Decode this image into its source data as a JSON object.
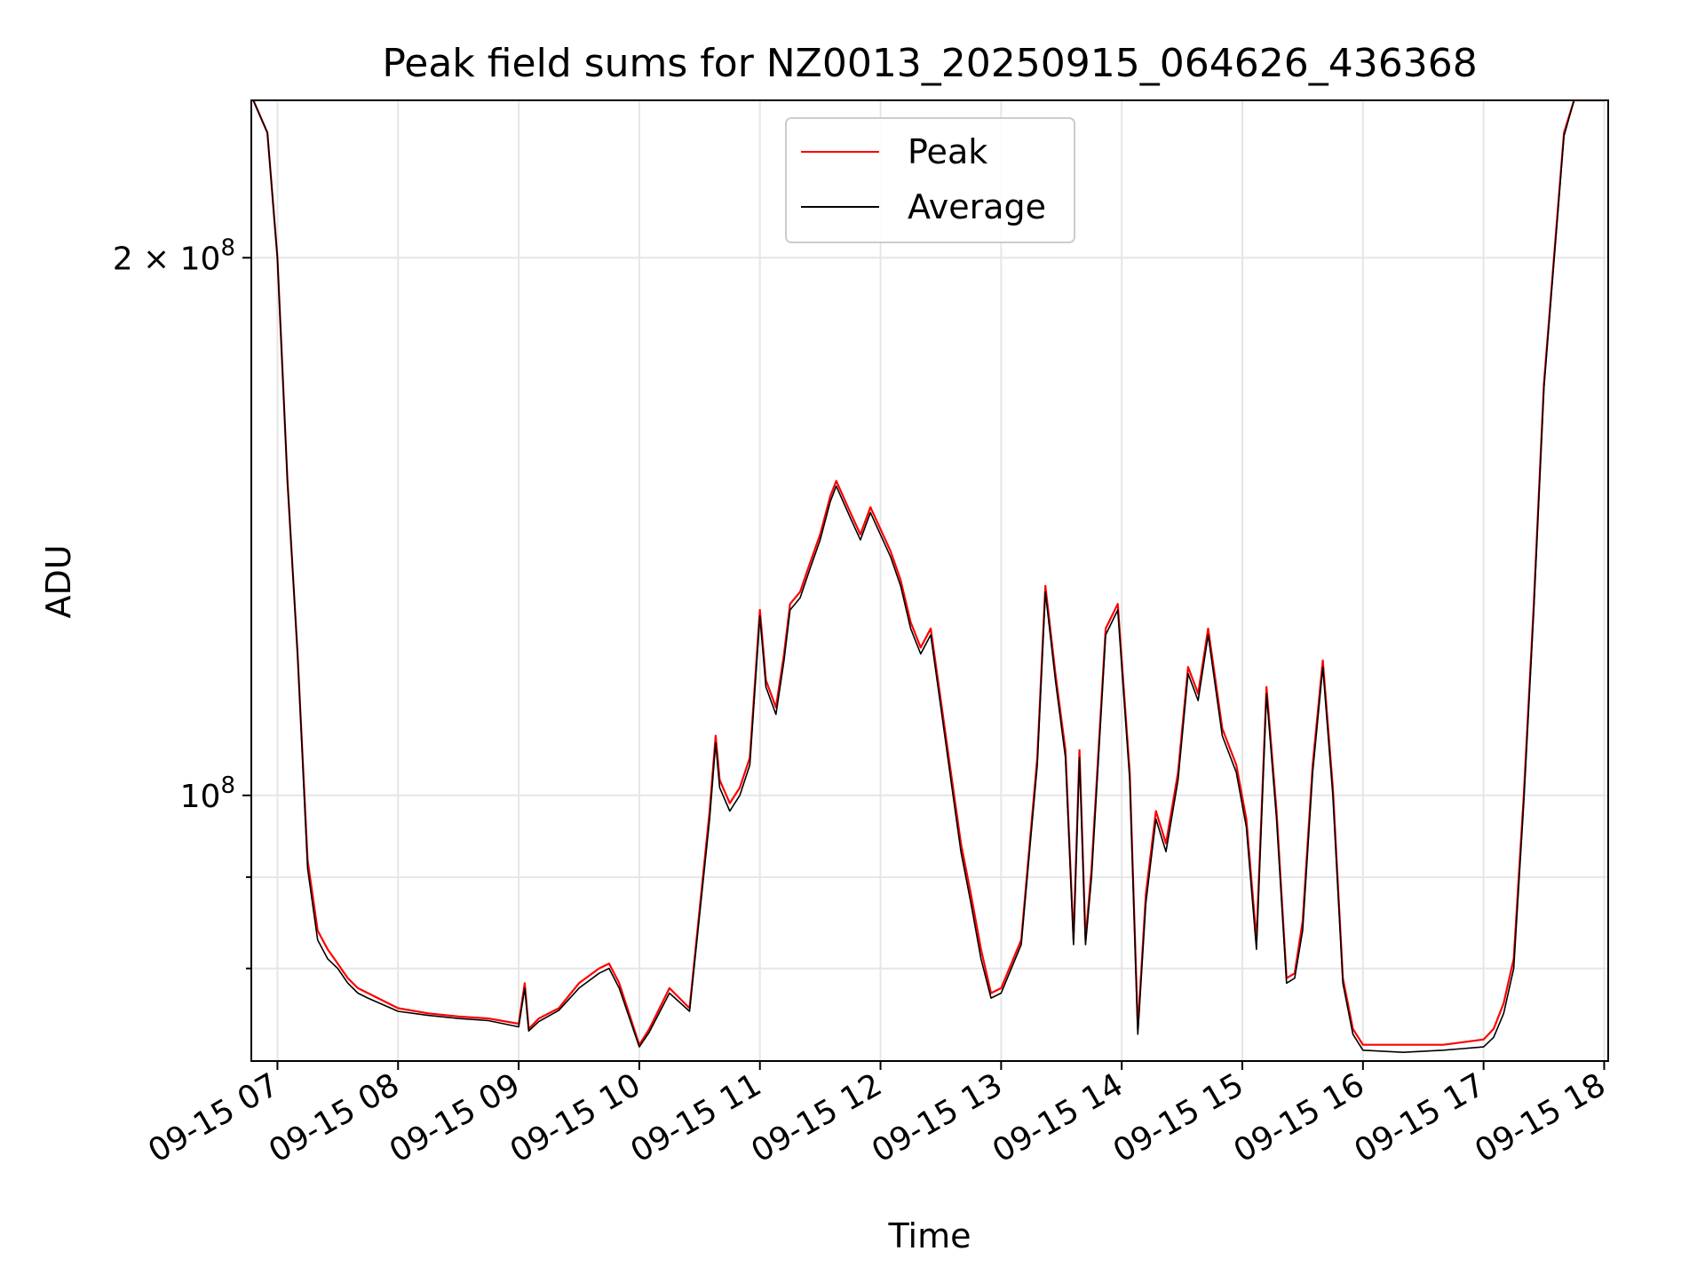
{
  "chart_data": {
    "type": "line",
    "title": "Peak field sums for NZ0013_20250915_064626_436368",
    "xlabel": "Time",
    "ylabel": "ADU",
    "yscale": "log",
    "grid": true,
    "legend_position": "upper center",
    "xlim": [
      "2025-09-15 06:47",
      "2025-09-15 18:02"
    ],
    "ylim": [
      71000000,
      245000000
    ],
    "x_tick_labels": [
      "09-15 07",
      "09-15 08",
      "09-15 09",
      "09-15 10",
      "09-15 11",
      "09-15 12",
      "09-15 13",
      "09-15 14",
      "09-15 15",
      "09-15 16",
      "09-15 17",
      "09-15 18"
    ],
    "x_tick_values": [
      "2025-09-15 07:00",
      "2025-09-15 08:00",
      "2025-09-15 09:00",
      "2025-09-15 10:00",
      "2025-09-15 11:00",
      "2025-09-15 12:00",
      "2025-09-15 13:00",
      "2025-09-15 14:00",
      "2025-09-15 15:00",
      "2025-09-15 16:00",
      "2025-09-15 17:00",
      "2025-09-15 18:00"
    ],
    "y_major_ticks": [
      {
        "value": 100000000,
        "mantissa": "",
        "base": "10",
        "exp": "8"
      },
      {
        "value": 200000000,
        "mantissa": "2",
        "base": "10",
        "exp": "8"
      }
    ],
    "y_minor_ticks": [
      80000000,
      90000000
    ],
    "series": [
      {
        "name": "Peak",
        "color": "#ff0000",
        "x": [
          "2025-09-15 06:48",
          "2025-09-15 06:55",
          "2025-09-15 07:00",
          "2025-09-15 07:05",
          "2025-09-15 07:10",
          "2025-09-15 07:15",
          "2025-09-15 07:20",
          "2025-09-15 07:25",
          "2025-09-15 07:30",
          "2025-09-15 07:35",
          "2025-09-15 07:40",
          "2025-09-15 07:45",
          "2025-09-15 08:00",
          "2025-09-15 08:15",
          "2025-09-15 08:30",
          "2025-09-15 08:45",
          "2025-09-15 09:00",
          "2025-09-15 09:03",
          "2025-09-15 09:05",
          "2025-09-15 09:10",
          "2025-09-15 09:20",
          "2025-09-15 09:30",
          "2025-09-15 09:40",
          "2025-09-15 09:45",
          "2025-09-15 09:50",
          "2025-09-15 10:00",
          "2025-09-15 10:05",
          "2025-09-15 10:15",
          "2025-09-15 10:25",
          "2025-09-15 10:35",
          "2025-09-15 10:38",
          "2025-09-15 10:40",
          "2025-09-15 10:45",
          "2025-09-15 10:50",
          "2025-09-15 10:55",
          "2025-09-15 11:00",
          "2025-09-15 11:03",
          "2025-09-15 11:08",
          "2025-09-15 11:12",
          "2025-09-15 11:15",
          "2025-09-15 11:20",
          "2025-09-15 11:25",
          "2025-09-15 11:30",
          "2025-09-15 11:35",
          "2025-09-15 11:38",
          "2025-09-15 11:45",
          "2025-09-15 11:50",
          "2025-09-15 11:55",
          "2025-09-15 12:05",
          "2025-09-15 12:10",
          "2025-09-15 12:15",
          "2025-09-15 12:20",
          "2025-09-15 12:25",
          "2025-09-15 12:30",
          "2025-09-15 12:35",
          "2025-09-15 12:40",
          "2025-09-15 12:45",
          "2025-09-15 12:50",
          "2025-09-15 12:55",
          "2025-09-15 13:00",
          "2025-09-15 13:10",
          "2025-09-15 13:18",
          "2025-09-15 13:22",
          "2025-09-15 13:27",
          "2025-09-15 13:32",
          "2025-09-15 13:36",
          "2025-09-15 13:39",
          "2025-09-15 13:42",
          "2025-09-15 13:45",
          "2025-09-15 13:52",
          "2025-09-15 13:58",
          "2025-09-15 14:04",
          "2025-09-15 14:08",
          "2025-09-15 14:12",
          "2025-09-15 14:17",
          "2025-09-15 14:22",
          "2025-09-15 14:28",
          "2025-09-15 14:33",
          "2025-09-15 14:38",
          "2025-09-15 14:43",
          "2025-09-15 14:50",
          "2025-09-15 14:57",
          "2025-09-15 15:02",
          "2025-09-15 15:07",
          "2025-09-15 15:12",
          "2025-09-15 15:17",
          "2025-09-15 15:22",
          "2025-09-15 15:26",
          "2025-09-15 15:30",
          "2025-09-15 15:35",
          "2025-09-15 15:40",
          "2025-09-15 15:45",
          "2025-09-15 15:50",
          "2025-09-15 15:55",
          "2025-09-15 16:00",
          "2025-09-15 16:20",
          "2025-09-15 16:40",
          "2025-09-15 17:00",
          "2025-09-15 17:05",
          "2025-09-15 17:10",
          "2025-09-15 17:15",
          "2025-09-15 17:20",
          "2025-09-15 17:25",
          "2025-09-15 17:30",
          "2025-09-15 17:35",
          "2025-09-15 17:40",
          "2025-09-15 17:45",
          "2025-09-15 17:50",
          "2025-09-15 17:55",
          "2025-09-15 18:00"
        ],
        "values": [
          245000000,
          235000000,
          200000000,
          150000000,
          120000000,
          92000000,
          84000000,
          82000000,
          80500000,
          79000000,
          78000000,
          77500000,
          76000000,
          75500000,
          75200000,
          75000000,
          74500000,
          78500000,
          74000000,
          75000000,
          76000000,
          78500000,
          80000000,
          80500000,
          78500000,
          72500000,
          74000000,
          78000000,
          76000000,
          98000000,
          108000000,
          102000000,
          99000000,
          101000000,
          105000000,
          127000000,
          116000000,
          112000000,
          120000000,
          128000000,
          130000000,
          135000000,
          140000000,
          147000000,
          150000000,
          144000000,
          140000000,
          145000000,
          137000000,
          132000000,
          125000000,
          121000000,
          124000000,
          113000000,
          103000000,
          94000000,
          88000000,
          82000000,
          77500000,
          78000000,
          83000000,
          105000000,
          131000000,
          117000000,
          106000000,
          83000000,
          106000000,
          83000000,
          91000000,
          124000000,
          128000000,
          103000000,
          74000000,
          88000000,
          98000000,
          94000000,
          103000000,
          118000000,
          114000000,
          124000000,
          109000000,
          104000000,
          97000000,
          83000000,
          115000000,
          98000000,
          79000000,
          79500000,
          85000000,
          104000000,
          119000000,
          101000000,
          79000000,
          74000000,
          72500000,
          72500000,
          72500000,
          73000000,
          74000000,
          76500000,
          81000000,
          100000000,
          128000000,
          170000000,
          200000000,
          235000000,
          245000000,
          245000000,
          245000000,
          245000000
        ]
      },
      {
        "name": "Average",
        "color": "#000000",
        "x": [
          "2025-09-15 06:48",
          "2025-09-15 06:55",
          "2025-09-15 07:00",
          "2025-09-15 07:05",
          "2025-09-15 07:10",
          "2025-09-15 07:15",
          "2025-09-15 07:20",
          "2025-09-15 07:25",
          "2025-09-15 07:30",
          "2025-09-15 07:35",
          "2025-09-15 07:40",
          "2025-09-15 07:45",
          "2025-09-15 08:00",
          "2025-09-15 08:15",
          "2025-09-15 08:30",
          "2025-09-15 08:45",
          "2025-09-15 09:00",
          "2025-09-15 09:03",
          "2025-09-15 09:05",
          "2025-09-15 09:10",
          "2025-09-15 09:20",
          "2025-09-15 09:30",
          "2025-09-15 09:40",
          "2025-09-15 09:45",
          "2025-09-15 09:50",
          "2025-09-15 10:00",
          "2025-09-15 10:05",
          "2025-09-15 10:15",
          "2025-09-15 10:25",
          "2025-09-15 10:35",
          "2025-09-15 10:38",
          "2025-09-15 10:40",
          "2025-09-15 10:45",
          "2025-09-15 10:50",
          "2025-09-15 10:55",
          "2025-09-15 11:00",
          "2025-09-15 11:03",
          "2025-09-15 11:08",
          "2025-09-15 11:12",
          "2025-09-15 11:15",
          "2025-09-15 11:20",
          "2025-09-15 11:25",
          "2025-09-15 11:30",
          "2025-09-15 11:35",
          "2025-09-15 11:38",
          "2025-09-15 11:45",
          "2025-09-15 11:50",
          "2025-09-15 11:55",
          "2025-09-15 12:05",
          "2025-09-15 12:10",
          "2025-09-15 12:15",
          "2025-09-15 12:20",
          "2025-09-15 12:25",
          "2025-09-15 12:30",
          "2025-09-15 12:35",
          "2025-09-15 12:40",
          "2025-09-15 12:45",
          "2025-09-15 12:50",
          "2025-09-15 12:55",
          "2025-09-15 13:00",
          "2025-09-15 13:10",
          "2025-09-15 13:18",
          "2025-09-15 13:22",
          "2025-09-15 13:27",
          "2025-09-15 13:32",
          "2025-09-15 13:36",
          "2025-09-15 13:39",
          "2025-09-15 13:42",
          "2025-09-15 13:45",
          "2025-09-15 13:52",
          "2025-09-15 13:58",
          "2025-09-15 14:04",
          "2025-09-15 14:08",
          "2025-09-15 14:12",
          "2025-09-15 14:17",
          "2025-09-15 14:22",
          "2025-09-15 14:28",
          "2025-09-15 14:33",
          "2025-09-15 14:38",
          "2025-09-15 14:43",
          "2025-09-15 14:50",
          "2025-09-15 14:57",
          "2025-09-15 15:02",
          "2025-09-15 15:07",
          "2025-09-15 15:12",
          "2025-09-15 15:17",
          "2025-09-15 15:22",
          "2025-09-15 15:26",
          "2025-09-15 15:30",
          "2025-09-15 15:35",
          "2025-09-15 15:40",
          "2025-09-15 15:45",
          "2025-09-15 15:50",
          "2025-09-15 15:55",
          "2025-09-15 16:00",
          "2025-09-15 16:20",
          "2025-09-15 16:40",
          "2025-09-15 17:00",
          "2025-09-15 17:05",
          "2025-09-15 17:10",
          "2025-09-15 17:15",
          "2025-09-15 17:20",
          "2025-09-15 17:25",
          "2025-09-15 17:30",
          "2025-09-15 17:35",
          "2025-09-15 17:40",
          "2025-09-15 17:45",
          "2025-09-15 17:50",
          "2025-09-15 17:55",
          "2025-09-15 18:00"
        ],
        "values": [
          245000000,
          235000000,
          200000000,
          150000000,
          120000000,
          91000000,
          83000000,
          81000000,
          80000000,
          78500000,
          77500000,
          77000000,
          75700000,
          75300000,
          75000000,
          74800000,
          74200000,
          78000000,
          73800000,
          74700000,
          75800000,
          78000000,
          79500000,
          80000000,
          78000000,
          72300000,
          73700000,
          77500000,
          75700000,
          97000000,
          107000000,
          101000000,
          98000000,
          100000000,
          104000000,
          126000000,
          115000000,
          111000000,
          119000000,
          127000000,
          129000000,
          134000000,
          139000000,
          146000000,
          149000000,
          143000000,
          139000000,
          144000000,
          136000000,
          131000000,
          124000000,
          120000000,
          123000000,
          112000000,
          102000000,
          93000000,
          87000000,
          81000000,
          77000000,
          77500000,
          82500000,
          104000000,
          130000000,
          116000000,
          105000000,
          82500000,
          105000000,
          82500000,
          90000000,
          123000000,
          127000000,
          102000000,
          73500000,
          87000000,
          97000000,
          93000000,
          102000000,
          117000000,
          113000000,
          123000000,
          108000000,
          103000000,
          96000000,
          82000000,
          114000000,
          97000000,
          78500000,
          79000000,
          84000000,
          103000000,
          118000000,
          100000000,
          78500000,
          73500000,
          72000000,
          71800000,
          72000000,
          72300000,
          73200000,
          75500000,
          80000000,
          99000000,
          127000000,
          169000000,
          199000000,
          234000000,
          245000000,
          245000000,
          245000000,
          245000000
        ]
      }
    ]
  }
}
